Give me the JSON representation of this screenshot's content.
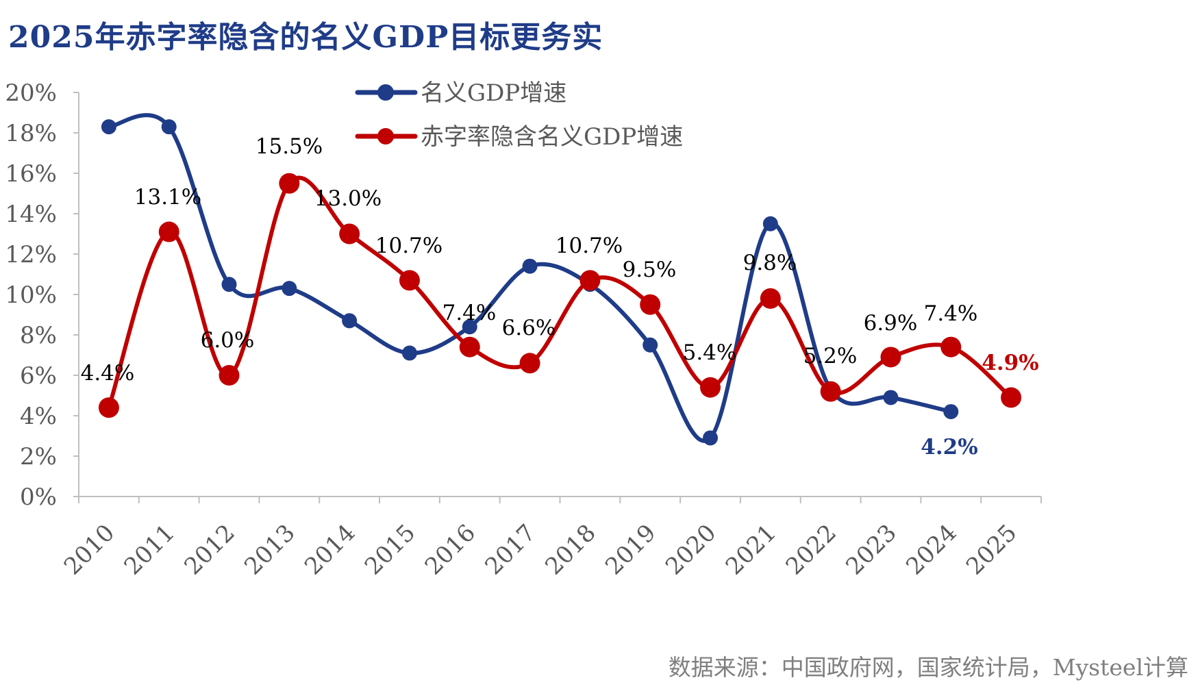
{
  "title": "2025年赤字率隐含的名义GDP目标更务实",
  "source": "数据来源：中国政府网，国家统计局，Mysteel计算",
  "colors": {
    "title": "#1f3c88",
    "series_blue": "#1f3c88",
    "series_red": "#c00000",
    "axis_text": "#595959",
    "axis_line": "#bfbfbf",
    "source": "#7f7f7f"
  },
  "chart_data": {
    "type": "line",
    "smooth": true,
    "categories": [
      "2010",
      "2011",
      "2012",
      "2013",
      "2014",
      "2015",
      "2016",
      "2017",
      "2018",
      "2019",
      "2020",
      "2021",
      "2022",
      "2023",
      "2024",
      "2025"
    ],
    "ylim": [
      0,
      20
    ],
    "yticks": [
      "0%",
      "2%",
      "4%",
      "6%",
      "8%",
      "10%",
      "12%",
      "14%",
      "16%",
      "18%",
      "20%"
    ],
    "grid": false,
    "legend_position": "top-center",
    "series": [
      {
        "name": "名义GDP增速",
        "color": "#1f3c88",
        "values": [
          18.3,
          18.3,
          10.5,
          10.3,
          8.7,
          7.1,
          8.4,
          11.4,
          10.5,
          7.5,
          2.9,
          13.5,
          5.3,
          4.9,
          4.2,
          null
        ],
        "labels": [
          null,
          null,
          null,
          null,
          null,
          null,
          null,
          null,
          null,
          null,
          null,
          null,
          null,
          null,
          "4.2%",
          null
        ]
      },
      {
        "name": "赤字率隐含名义GDP增速",
        "color": "#c00000",
        "values": [
          4.4,
          13.1,
          6.0,
          15.5,
          13.0,
          10.7,
          7.4,
          6.6,
          10.7,
          9.5,
          5.4,
          9.8,
          5.2,
          6.9,
          7.4,
          4.9
        ],
        "labels": [
          "4.4%",
          "13.1%",
          "6.0%",
          "15.5%",
          "13.0%",
          "10.7%",
          "7.4%",
          "6.6%",
          "10.7%",
          "9.5%",
          "5.4%",
          "9.8%",
          "5.2%",
          "6.9%",
          "7.4%",
          "4.9%"
        ]
      }
    ]
  }
}
